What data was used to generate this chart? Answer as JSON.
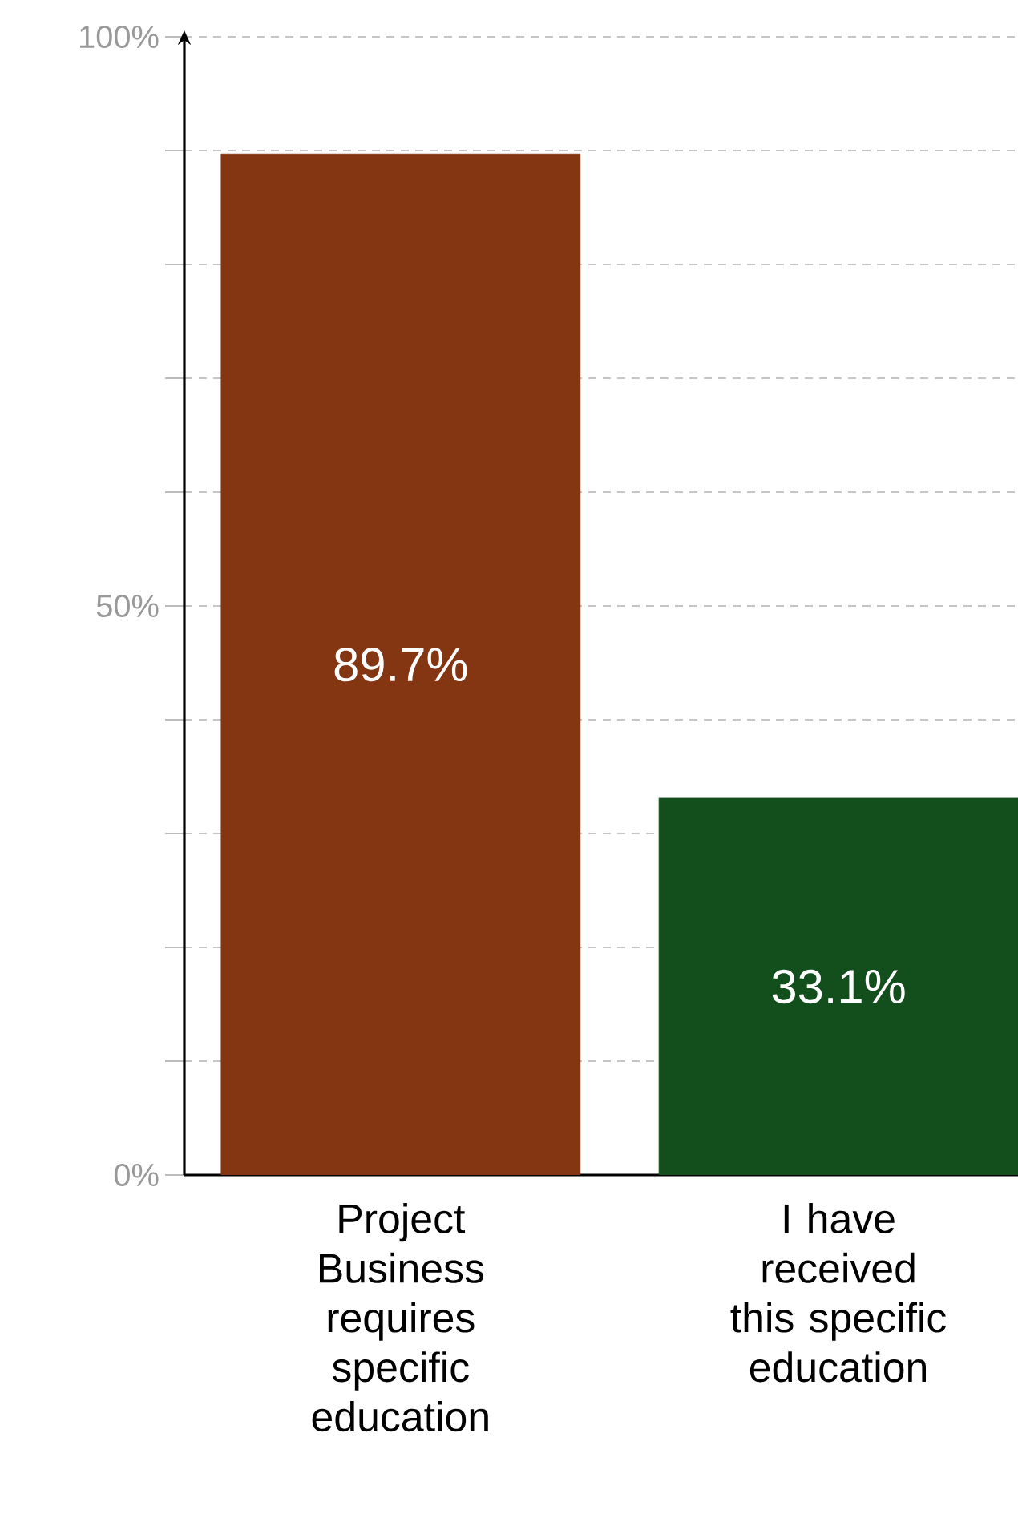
{
  "chart_data": {
    "type": "bar",
    "categories": [
      "Project Business requires specific education",
      "I have received this specific education"
    ],
    "values": [
      89.7,
      33.1
    ],
    "colors": [
      "#843511",
      "#134e1d"
    ],
    "value_labels": [
      "89.7%",
      "33.1%"
    ],
    "ylim": [
      0,
      100
    ],
    "yticks": [
      {
        "value": 0,
        "label": "0%"
      },
      {
        "value": 10,
        "label": null
      },
      {
        "value": 20,
        "label": null
      },
      {
        "value": 30,
        "label": null
      },
      {
        "value": 40,
        "label": null
      },
      {
        "value": 50,
        "label": "50%"
      },
      {
        "value": 60,
        "label": null
      },
      {
        "value": 70,
        "label": null
      },
      {
        "value": 80,
        "label": null
      },
      {
        "value": 90,
        "label": null
      },
      {
        "value": 100,
        "label": "100%"
      }
    ],
    "grid": "y"
  }
}
